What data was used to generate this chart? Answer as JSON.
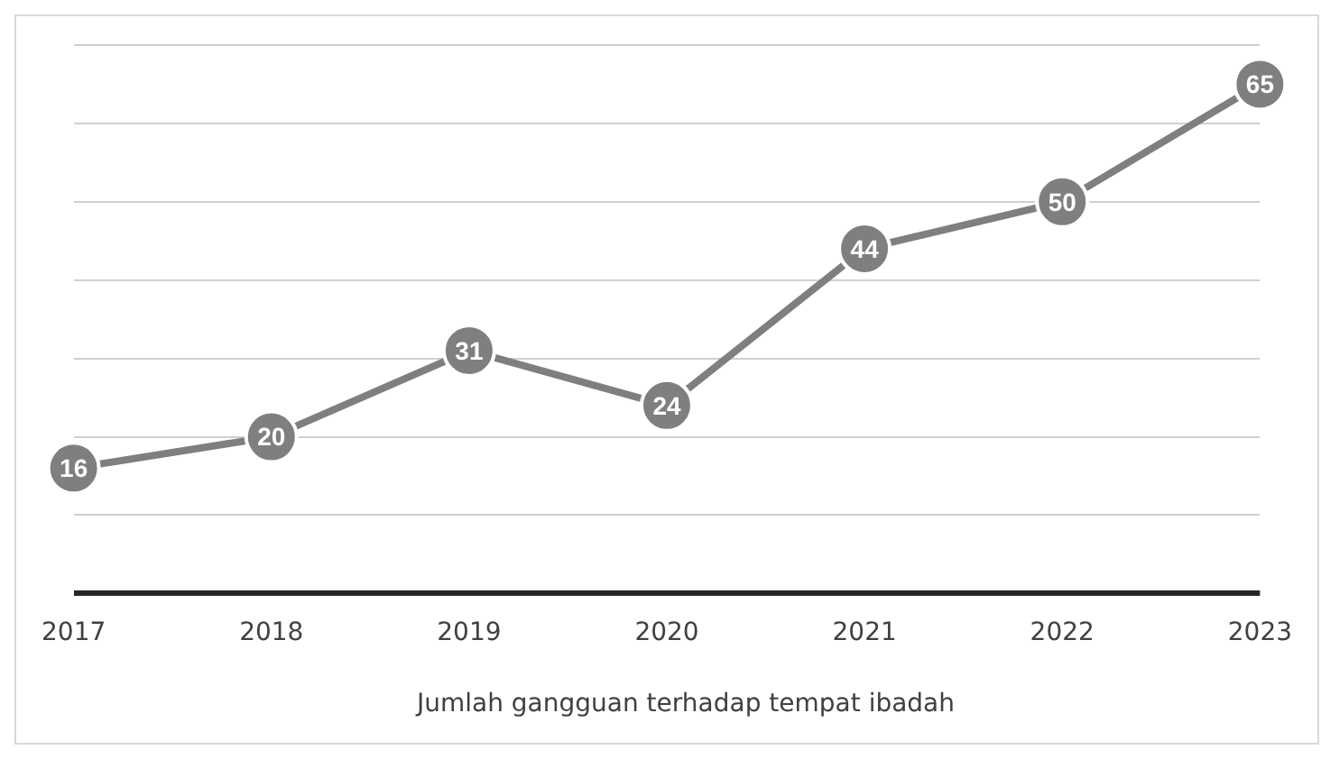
{
  "chart_data": {
    "type": "line",
    "categories": [
      "2017",
      "2018",
      "2019",
      "2020",
      "2021",
      "2022",
      "2023"
    ],
    "series": [
      {
        "name": "Jumlah gangguan terhadap tempat ibadah",
        "color": "#7f7f7f",
        "values": [
          16,
          20,
          31,
          24,
          44,
          50,
          65
        ]
      }
    ],
    "ylim": [
      0,
      70
    ],
    "yticks": [
      {
        "value": 0,
        "label": null
      },
      {
        "value": 10,
        "label": null
      },
      {
        "value": 20,
        "label": null
      },
      {
        "value": 30,
        "label": null
      },
      {
        "value": 40,
        "label": null
      },
      {
        "value": 50,
        "label": null
      },
      {
        "value": 60,
        "label": null
      },
      {
        "value": 70,
        "label": null
      }
    ],
    "tick_labels": "x",
    "grid": "y",
    "legend": "bottom",
    "marker": "circle",
    "line_style": "solid",
    "data_labels": true
  }
}
